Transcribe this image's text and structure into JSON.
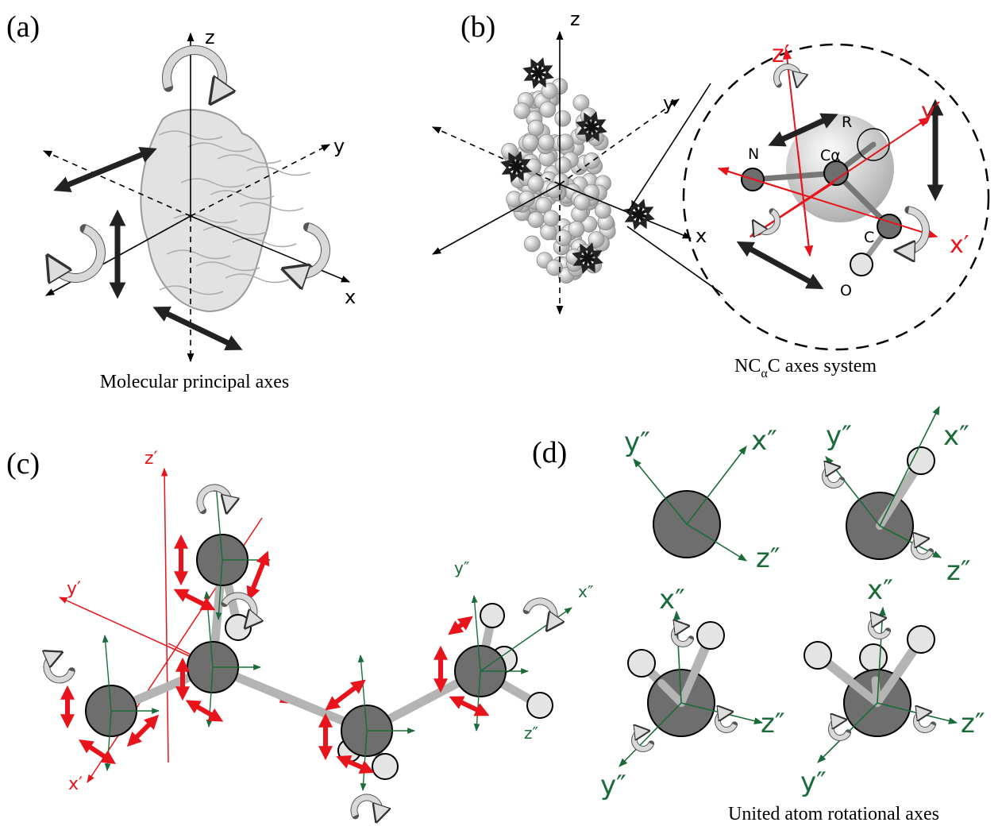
{
  "panel_a": {
    "label": "(a)",
    "axes": {
      "z": "z",
      "y": "y",
      "x": "x"
    },
    "caption": "Molecular principal axes"
  },
  "panel_b": {
    "label": "(b)",
    "axes": {
      "z": "z",
      "y": "y",
      "x": "x"
    },
    "local_axes": {
      "z": "z′",
      "y": "y′",
      "x": "x′"
    },
    "atoms": {
      "n": "N",
      "ca": "Cα",
      "r": "R",
      "c": "C",
      "o": "O"
    },
    "caption": [
      "NC",
      "α",
      "C axes system"
    ]
  },
  "panel_c": {
    "label": "(c)",
    "backbone_axes": {
      "z": "z′",
      "y": "y′",
      "x": "x′"
    },
    "united_atom_axes": {
      "y": "y″",
      "x": "x″",
      "z": "z″"
    }
  },
  "panel_d": {
    "label": "(d)",
    "diagrams": [
      {
        "y": "y″",
        "x": "x″",
        "z": "z″"
      },
      {
        "y": "y″",
        "x": "x″",
        "z": "z″"
      },
      {
        "y": "y″",
        "x": "x″",
        "z": "z″"
      },
      {
        "y": "y″",
        "x": "x″",
        "z": "z″"
      }
    ],
    "caption": "United atom rotational axes"
  }
}
